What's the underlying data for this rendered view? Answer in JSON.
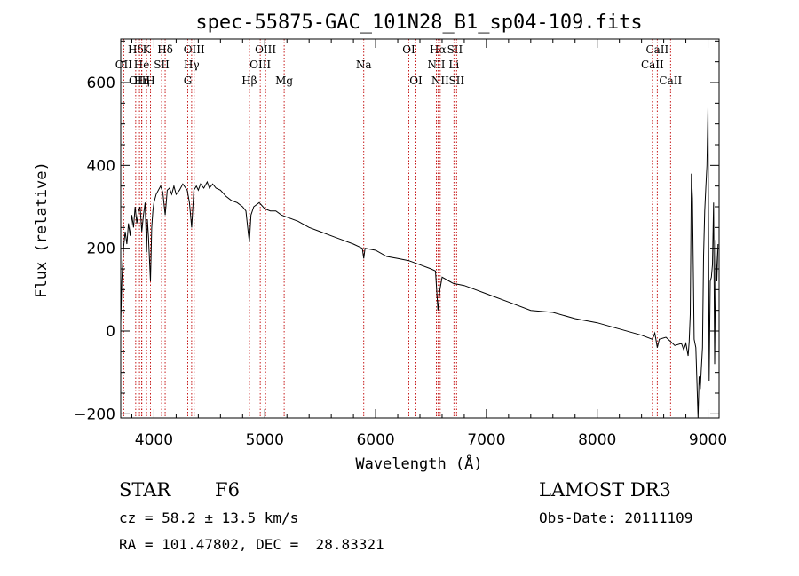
{
  "chart_data": {
    "type": "line",
    "title": "spec-55875-GAC_101N28_B1_sp04-109.fits",
    "xlabel": "Wavelength (Å)",
    "ylabel": "Flux (relative)",
    "xlim": [
      3700,
      9100
    ],
    "ylim": [
      -210,
      705
    ],
    "xticks": [
      4000,
      5000,
      6000,
      7000,
      8000,
      9000
    ],
    "yticks": [
      -200,
      0,
      200,
      400,
      600
    ],
    "grid": false,
    "series": [
      {
        "name": "flux",
        "x": [
          3700,
          3710,
          3725,
          3740,
          3755,
          3770,
          3785,
          3800,
          3815,
          3830,
          3845,
          3860,
          3875,
          3890,
          3905,
          3920,
          3933,
          3940,
          3950,
          3968,
          3980,
          3990,
          4000,
          4020,
          4040,
          4060,
          4080,
          4101,
          4120,
          4140,
          4160,
          4180,
          4200,
          4230,
          4260,
          4300,
          4320,
          4340,
          4360,
          4383,
          4400,
          4420,
          4450,
          4480,
          4500,
          4530,
          4560,
          4600,
          4650,
          4700,
          4750,
          4800,
          4830,
          4850,
          4861,
          4875,
          4900,
          4950,
          5000,
          5050,
          5100,
          5150,
          5200,
          5300,
          5400,
          5500,
          5600,
          5700,
          5800,
          5880,
          5893,
          5905,
          6000,
          6100,
          6200,
          6300,
          6400,
          6500,
          6540,
          6563,
          6580,
          6600,
          6700,
          6800,
          6900,
          7000,
          7200,
          7400,
          7600,
          7800,
          8000,
          8200,
          8400,
          8498,
          8520,
          8542,
          8560,
          8620,
          8662,
          8700,
          8760,
          8780,
          8800,
          8820,
          8830,
          8840,
          8850,
          8860,
          8875,
          8890,
          8900,
          8910,
          8920,
          8930,
          8940,
          8950,
          8960,
          8970,
          8980,
          8990,
          9000,
          9010,
          9020,
          9030,
          9040,
          9050,
          9060,
          9070,
          9080,
          9090
        ],
        "y": [
          20,
          120,
          200,
          240,
          210,
          260,
          230,
          280,
          250,
          300,
          260,
          290,
          300,
          240,
          280,
          310,
          190,
          270,
          230,
          120,
          250,
          290,
          310,
          330,
          340,
          350,
          335,
          280,
          340,
          345,
          330,
          350,
          330,
          340,
          355,
          340,
          310,
          250,
          340,
          350,
          340,
          355,
          345,
          360,
          345,
          355,
          345,
          340,
          325,
          315,
          310,
          300,
          290,
          240,
          215,
          280,
          300,
          310,
          295,
          290,
          290,
          280,
          275,
          265,
          250,
          240,
          230,
          220,
          210,
          200,
          175,
          200,
          195,
          180,
          175,
          170,
          160,
          150,
          145,
          50,
          100,
          130,
          115,
          110,
          100,
          90,
          70,
          50,
          45,
          30,
          20,
          5,
          -10,
          -20,
          -5,
          -40,
          -20,
          -15,
          -25,
          -35,
          -30,
          -45,
          -30,
          -60,
          -25,
          40,
          380,
          320,
          -20,
          -40,
          -120,
          -230,
          -110,
          -140,
          -90,
          -40,
          180,
          290,
          345,
          400,
          540,
          -120,
          120,
          130,
          160,
          310,
          -80,
          220,
          120,
          210
        ]
      }
    ],
    "emission_lines": [
      {
        "label": "Hδ",
        "x": 3835,
        "row": 0
      },
      {
        "label": "OII",
        "x": 3727,
        "row": 1
      },
      {
        "label": "He",
        "x": 3889,
        "row": 1
      },
      {
        "label": "OIII",
        "x": 3869,
        "row": 2
      },
      {
        "label": "Hη",
        "x": 3890,
        "row": 2
      },
      {
        "label": "K",
        "x": 3933,
        "row": 0
      },
      {
        "label": "H",
        "x": 3968,
        "row": 2
      },
      {
        "label": "SII",
        "x": 4069,
        "row": 1
      },
      {
        "label": "Hδ",
        "x": 4101,
        "row": 0
      },
      {
        "label": "OIII",
        "x": 4363,
        "row": 0
      },
      {
        "label": "Hγ",
        "x": 4340,
        "row": 1
      },
      {
        "label": "G",
        "x": 4305,
        "row": 2
      },
      {
        "label": "Hβ",
        "x": 4861,
        "row": 2
      },
      {
        "label": "OIII",
        "x": 5007,
        "row": 0
      },
      {
        "label": "OIII",
        "x": 4959,
        "row": 1
      },
      {
        "label": "Mg",
        "x": 5175,
        "row": 2
      },
      {
        "label": "Na",
        "x": 5893,
        "row": 1
      },
      {
        "label": "OI",
        "x": 6300,
        "row": 0
      },
      {
        "label": "OI",
        "x": 6364,
        "row": 2
      },
      {
        "label": "Hα",
        "x": 6563,
        "row": 0
      },
      {
        "label": "NII",
        "x": 6548,
        "row": 1
      },
      {
        "label": "NII",
        "x": 6583,
        "row": 2
      },
      {
        "label": "SII",
        "x": 6716,
        "row": 0
      },
      {
        "label": "Li",
        "x": 6707,
        "row": 1
      },
      {
        "label": "SII",
        "x": 6731,
        "row": 2
      },
      {
        "label": "CaII",
        "x": 8542,
        "row": 0
      },
      {
        "label": "CaII",
        "x": 8498,
        "row": 1
      },
      {
        "label": "CaII",
        "x": 8662,
        "row": 2
      }
    ]
  },
  "info": {
    "object_type": "STAR",
    "subclass": "F6",
    "redshift": "cz = 58.2 ± 13.5 km/s",
    "coords": "RA = 101.47802, DEC =  28.83321",
    "survey": "LAMOST DR3",
    "obs_date": "Obs-Date: 20111109"
  }
}
